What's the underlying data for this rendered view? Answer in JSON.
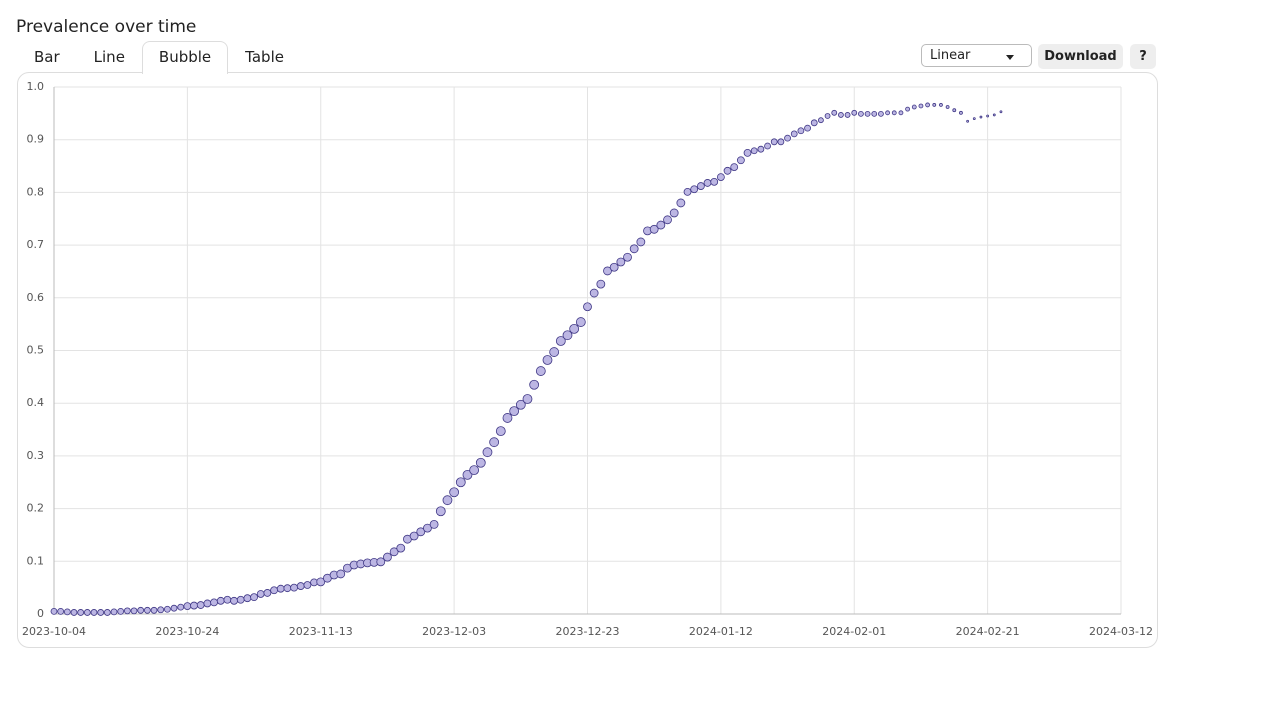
{
  "ui": {
    "title": "Prevalence over time",
    "tabs": [
      "Bar",
      "Line",
      "Bubble",
      "Table"
    ],
    "active_tab": 2,
    "scale_select": "Linear",
    "download": "Download",
    "help": "?"
  },
  "chart_data": {
    "type": "bubble",
    "x": [
      "2023-10-04",
      "2023-10-05",
      "2023-10-06",
      "2023-10-07",
      "2023-10-08",
      "2023-10-09",
      "2023-10-10",
      "2023-10-11",
      "2023-10-12",
      "2023-10-13",
      "2023-10-14",
      "2023-10-15",
      "2023-10-16",
      "2023-10-17",
      "2023-10-18",
      "2023-10-19",
      "2023-10-20",
      "2023-10-21",
      "2023-10-22",
      "2023-10-23",
      "2023-10-24",
      "2023-10-25",
      "2023-10-26",
      "2023-10-27",
      "2023-10-28",
      "2023-10-29",
      "2023-10-30",
      "2023-10-31",
      "2023-11-01",
      "2023-11-02",
      "2023-11-03",
      "2023-11-04",
      "2023-11-05",
      "2023-11-06",
      "2023-11-07",
      "2023-11-08",
      "2023-11-09",
      "2023-11-10",
      "2023-11-11",
      "2023-11-12",
      "2023-11-13",
      "2023-11-14",
      "2023-11-15",
      "2023-11-16",
      "2023-11-17",
      "2023-11-18",
      "2023-11-19",
      "2023-11-20",
      "2023-11-21",
      "2023-11-22",
      "2023-11-23",
      "2023-11-24",
      "2023-11-25",
      "2023-11-26",
      "2023-11-27",
      "2023-11-28",
      "2023-11-29",
      "2023-11-30",
      "2023-12-01",
      "2023-12-02",
      "2023-12-03",
      "2023-12-04",
      "2023-12-05",
      "2023-12-06",
      "2023-12-07",
      "2023-12-08",
      "2023-12-09",
      "2023-12-10",
      "2023-12-11",
      "2023-12-12",
      "2023-12-13",
      "2023-12-14",
      "2023-12-15",
      "2023-12-16",
      "2023-12-17",
      "2023-12-18",
      "2023-12-19",
      "2023-12-20",
      "2023-12-21",
      "2023-12-22",
      "2023-12-23",
      "2023-12-24",
      "2023-12-25",
      "2023-12-26",
      "2023-12-27",
      "2023-12-28",
      "2023-12-29",
      "2023-12-30",
      "2023-12-31",
      "2024-01-01",
      "2024-01-02",
      "2024-01-03",
      "2024-01-04",
      "2024-01-05",
      "2024-01-06",
      "2024-01-07",
      "2024-01-08",
      "2024-01-09",
      "2024-01-10",
      "2024-01-11",
      "2024-01-12",
      "2024-01-13",
      "2024-01-14",
      "2024-01-15",
      "2024-01-16",
      "2024-01-17",
      "2024-01-18",
      "2024-01-19",
      "2024-01-20",
      "2024-01-21",
      "2024-01-22",
      "2024-01-23",
      "2024-01-24",
      "2024-01-25",
      "2024-01-26",
      "2024-01-27",
      "2024-01-28",
      "2024-01-29",
      "2024-01-30",
      "2024-01-31",
      "2024-02-01",
      "2024-02-02",
      "2024-02-03",
      "2024-02-04",
      "2024-02-05",
      "2024-02-06",
      "2024-02-07",
      "2024-02-08",
      "2024-02-09",
      "2024-02-10",
      "2024-02-11",
      "2024-02-12",
      "2024-02-13",
      "2024-02-14",
      "2024-02-15",
      "2024-02-16",
      "2024-02-17",
      "2024-02-18",
      "2024-02-19",
      "2024-02-20",
      "2024-02-21",
      "2024-02-22",
      "2024-02-23"
    ],
    "values": [
      0.005,
      0.005,
      0.004,
      0.003,
      0.003,
      0.003,
      0.003,
      0.003,
      0.003,
      0.004,
      0.005,
      0.006,
      0.006,
      0.007,
      0.007,
      0.007,
      0.008,
      0.009,
      0.011,
      0.013,
      0.015,
      0.016,
      0.017,
      0.02,
      0.022,
      0.025,
      0.027,
      0.025,
      0.027,
      0.03,
      0.032,
      0.038,
      0.04,
      0.045,
      0.048,
      0.049,
      0.05,
      0.053,
      0.055,
      0.06,
      0.061,
      0.068,
      0.074,
      0.076,
      0.087,
      0.093,
      0.095,
      0.097,
      0.098,
      0.099,
      0.108,
      0.118,
      0.125,
      0.142,
      0.148,
      0.156,
      0.163,
      0.17,
      0.195,
      0.216,
      0.231,
      0.25,
      0.264,
      0.273,
      0.287,
      0.307,
      0.326,
      0.347,
      0.372,
      0.385,
      0.397,
      0.408,
      0.435,
      0.461,
      0.482,
      0.497,
      0.518,
      0.529,
      0.541,
      0.554,
      0.583,
      0.609,
      0.626,
      0.651,
      0.658,
      0.668,
      0.677,
      0.693,
      0.706,
      0.727,
      0.73,
      0.738,
      0.748,
      0.761,
      0.78,
      0.801,
      0.806,
      0.812,
      0.818,
      0.82,
      0.829,
      0.841,
      0.848,
      0.861,
      0.875,
      0.879,
      0.882,
      0.888,
      0.896,
      0.896,
      0.903,
      0.911,
      0.917,
      0.922,
      0.932,
      0.937,
      0.945,
      0.951,
      0.947,
      0.947,
      0.951,
      0.949,
      0.949,
      0.949,
      0.949,
      0.951,
      0.951,
      0.951,
      0.958,
      0.962,
      0.964,
      0.966,
      0.966,
      0.966,
      0.962,
      0.956,
      0.951,
      0.935,
      0.94,
      0.943,
      0.945,
      0.947,
      0.953
    ],
    "sizes": [
      3,
      3,
      3,
      3,
      3,
      3,
      3,
      3,
      3,
      3,
      3,
      3,
      3,
      3,
      3,
      3,
      3,
      3,
      3,
      3,
      3.5,
      3.5,
      3.5,
      3.5,
      3.5,
      3.5,
      3.5,
      3.5,
      3.5,
      3.5,
      3.5,
      3.5,
      3.5,
      3.5,
      3.5,
      3.5,
      3.5,
      3.5,
      3.5,
      3.5,
      4,
      4,
      4,
      4,
      4,
      4,
      4,
      4,
      4,
      4,
      4,
      4,
      4,
      4,
      4,
      4,
      4,
      4,
      4.5,
      4.5,
      4.5,
      4.5,
      4.5,
      4.5,
      4.5,
      4.5,
      4.5,
      4.5,
      4.5,
      4.5,
      4.5,
      4.5,
      4.5,
      4.5,
      4.5,
      4.5,
      4.5,
      4.5,
      4.5,
      4.5,
      4,
      4,
      4,
      4,
      4,
      4,
      4,
      4,
      4,
      4,
      4,
      4,
      4,
      4,
      4,
      3.5,
      3.5,
      3.5,
      3.5,
      3.5,
      3.5,
      3.5,
      3.5,
      3.5,
      3.5,
      3,
      3,
      3,
      3,
      3,
      3,
      3,
      3,
      3,
      3,
      2.5,
      2.5,
      2.5,
      2.5,
      2.5,
      2.5,
      2.5,
      2.5,
      2.5,
      2.5,
      2,
      2,
      2,
      2,
      2,
      2,
      2,
      1.5,
      1.5,
      1.5,
      1.5,
      1.5,
      1,
      1,
      1,
      1,
      1,
      1
    ],
    "color": "#bcb6e3",
    "edge_color": "#3f3785",
    "xlim": [
      "2023-10-04",
      "2024-03-12"
    ],
    "xticks": [
      "2023-10-04",
      "2023-10-24",
      "2023-11-13",
      "2023-12-03",
      "2023-12-23",
      "2024-01-12",
      "2024-02-01",
      "2024-02-21",
      "2024-03-12"
    ],
    "ylim": [
      0,
      1
    ],
    "yticks": [
      0,
      0.1,
      0.2,
      0.3,
      0.4,
      0.5,
      0.6,
      0.7,
      0.8,
      0.9,
      {
        "value": 1,
        "label": "1.0"
      }
    ],
    "grid": true
  }
}
